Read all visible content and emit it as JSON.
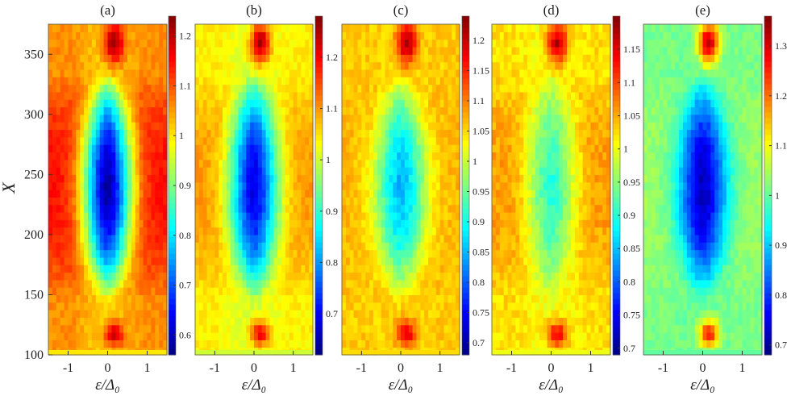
{
  "figure": {
    "ylabel": "X",
    "xlabel": "ε/Δ₀"
  },
  "chart_data": [
    {
      "type": "heatmap",
      "panel": "(a)",
      "title": "(a)",
      "xlabel": "ε/Δ₀",
      "ylabel": "X",
      "xlim": [
        -1.5,
        1.5
      ],
      "ylim": [
        100,
        375
      ],
      "xticks": [
        -1,
        0,
        1
      ],
      "yticks": [
        100,
        150,
        200,
        250,
        300,
        350
      ],
      "colorbar": {
        "min": 0.56,
        "max": 1.24,
        "ticks": [
          0.6,
          0.7,
          0.8,
          0.9,
          1,
          1.1,
          1.2
        ],
        "tick_labels": [
          "0.6",
          "0.7",
          "0.8",
          "0.9",
          "1",
          "1.1",
          "1.2"
        ]
      },
      "colormap": "jet",
      "summary": {
        "center_gap_min": 0.58,
        "coherence_peak": 1.22,
        "background": 1.0,
        "edge_value": 1.15
      }
    },
    {
      "type": "heatmap",
      "panel": "(b)",
      "title": "(b)",
      "xlabel": "ε/Δ₀",
      "xlim": [
        -1.5,
        1.5
      ],
      "ylim": [
        100,
        375
      ],
      "xticks": [
        -1,
        0,
        1
      ],
      "colorbar": {
        "min": 0.62,
        "max": 1.28,
        "ticks": [
          0.7,
          0.8,
          0.9,
          1,
          1.1,
          1.2
        ],
        "tick_labels": [
          "0.7",
          "0.8",
          "0.9",
          "1",
          "1.1",
          "1.2"
        ]
      },
      "colormap": "jet",
      "summary": {
        "center_gap_min": 0.68,
        "coherence_peak": 1.25,
        "background": 1.0,
        "edge_value": 1.1
      }
    },
    {
      "type": "heatmap",
      "panel": "(c)",
      "title": "(c)",
      "xlabel": "ε/Δ₀",
      "xlim": [
        -1.5,
        1.5
      ],
      "ylim": [
        100,
        375
      ],
      "xticks": [
        -1,
        0,
        1
      ],
      "colorbar": {
        "min": 0.68,
        "max": 1.24,
        "ticks": [
          0.7,
          0.75,
          0.8,
          0.85,
          0.9,
          0.95,
          1,
          1.05,
          1.1,
          1.15,
          1.2
        ],
        "tick_labels": [
          "0.7",
          "0.75",
          "0.8",
          "0.85",
          "0.9",
          "0.95",
          "1",
          "1.05",
          "1.1",
          "1.15",
          "1.2"
        ]
      },
      "colormap": "jet",
      "summary": {
        "center_gap_min": 0.85,
        "coherence_peak": 1.22,
        "background": 1.05,
        "edge_value": 1.07
      }
    },
    {
      "type": "heatmap",
      "panel": "(d)",
      "title": "(d)",
      "xlabel": "ε/Δ₀",
      "xlim": [
        -1.5,
        1.5
      ],
      "ylim": [
        100,
        375
      ],
      "xticks": [
        -1,
        0,
        1
      ],
      "colorbar": {
        "min": 0.69,
        "max": 1.2,
        "ticks": [
          0.7,
          0.75,
          0.8,
          0.85,
          0.9,
          0.95,
          1,
          1.05,
          1.1,
          1.15
        ],
        "tick_labels": [
          "0.7",
          "0.75",
          "0.8",
          "0.85",
          "0.9",
          "0.95",
          "1",
          "1.05",
          "1.1",
          "1.15"
        ]
      },
      "colormap": "jet",
      "summary": {
        "center_gap_min": 0.9,
        "coherence_peak": 1.17,
        "background": 1.0,
        "edge_value": 1.06
      }
    },
    {
      "type": "heatmap",
      "panel": "(e)",
      "title": "(e)",
      "xlabel": "ε/Δ₀",
      "xlim": [
        -1.5,
        1.5
      ],
      "ylim": [
        100,
        375
      ],
      "xticks": [
        -1,
        0,
        1
      ],
      "colorbar": {
        "min": 0.68,
        "max": 1.36,
        "ticks": [
          0.7,
          0.8,
          0.9,
          1,
          1.1,
          1.2,
          1.3
        ],
        "tick_labels": [
          "0.7",
          "0.8",
          "0.9",
          "1",
          "1.1",
          "1.2",
          "1.3"
        ]
      },
      "colormap": "jet",
      "summary": {
        "center_gap_min": 0.72,
        "coherence_peak": 1.33,
        "background": 1.0,
        "edge_value": 1.04
      }
    }
  ]
}
